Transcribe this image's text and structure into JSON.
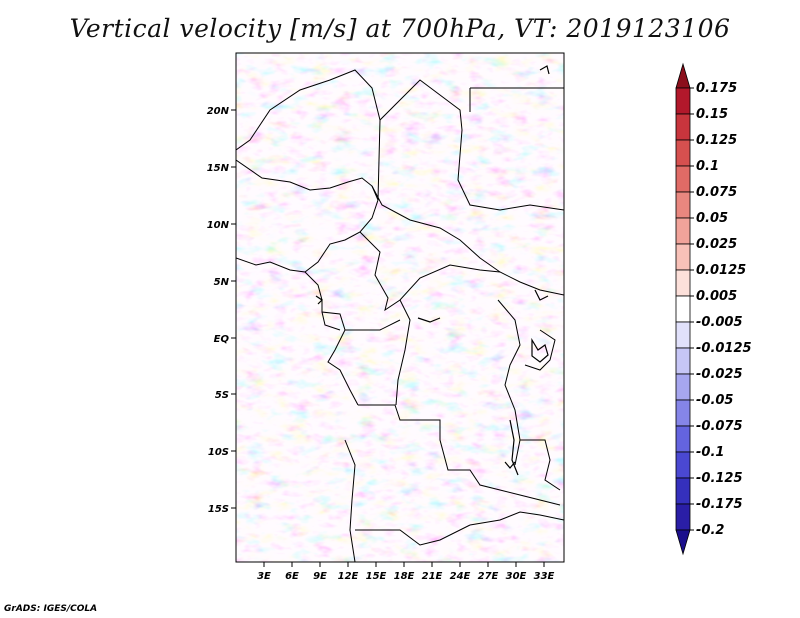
{
  "title": "Vertical velocity [m/s] at 700hPa, VT: 2019123106",
  "credit": "GrADS: IGES/COLA",
  "lat_labels": [
    "20N",
    "15N",
    "10N",
    "5N",
    "EQ",
    "5S",
    "10S",
    "15S"
  ],
  "lon_labels": [
    "3E",
    "6E",
    "9E",
    "12E",
    "15E",
    "18E",
    "21E",
    "24E",
    "27E",
    "30E",
    "33E"
  ],
  "colorbar": {
    "labels": [
      "0.175",
      "0.15",
      "0.125",
      "0.1",
      "0.075",
      "0.05",
      "0.025",
      "0.0125",
      "0.005",
      "-0.005",
      "-0.0125",
      "-0.025",
      "-0.05",
      "-0.075",
      "-0.1",
      "-0.125",
      "-0.175",
      "-0.2"
    ],
    "colors": [
      "#8b0f1c",
      "#b2182b",
      "#c8353d",
      "#d6504f",
      "#e06b66",
      "#e9877f",
      "#f1a39a",
      "#f8c1b8",
      "#fce0da",
      "#ffffff",
      "#e1e1fb",
      "#c6c6f6",
      "#a6a6ef",
      "#8585e8",
      "#6464df",
      "#4a48d2",
      "#3530bd",
      "#2a1ea6",
      "#1b0f8c"
    ]
  }
}
